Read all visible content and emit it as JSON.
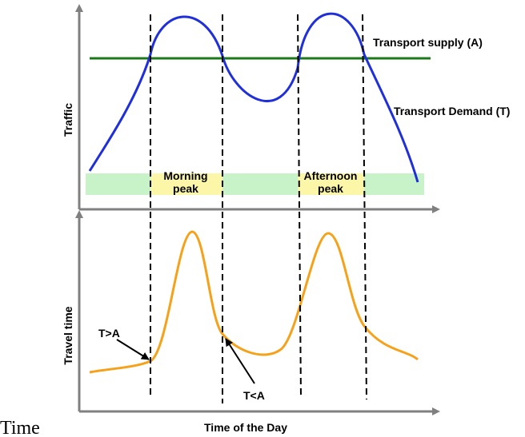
{
  "labels": {
    "transport_supply": "Transport supply (A)",
    "transport_demand": "Transport Demand (T)",
    "traffic_axis": "Traffic",
    "travel_time_axis": "Travel time",
    "time_of_day_axis": "Time of the Day",
    "morning_peak_line1": "Morning",
    "morning_peak_line2": "peak",
    "afternoon_peak_line1": "Afternoon",
    "afternoon_peak_line2": "peak",
    "t_greater_a": "T>A",
    "t_less_a": "T<A",
    "caption": "Time"
  },
  "colors": {
    "supply": "#1a7a1a",
    "demand": "#1f2fd9",
    "travel_time": "#f5a21a",
    "offpeak_band": "#c8f2c8",
    "peak_band": "#fbf6a8",
    "axis": "#808080"
  }
}
